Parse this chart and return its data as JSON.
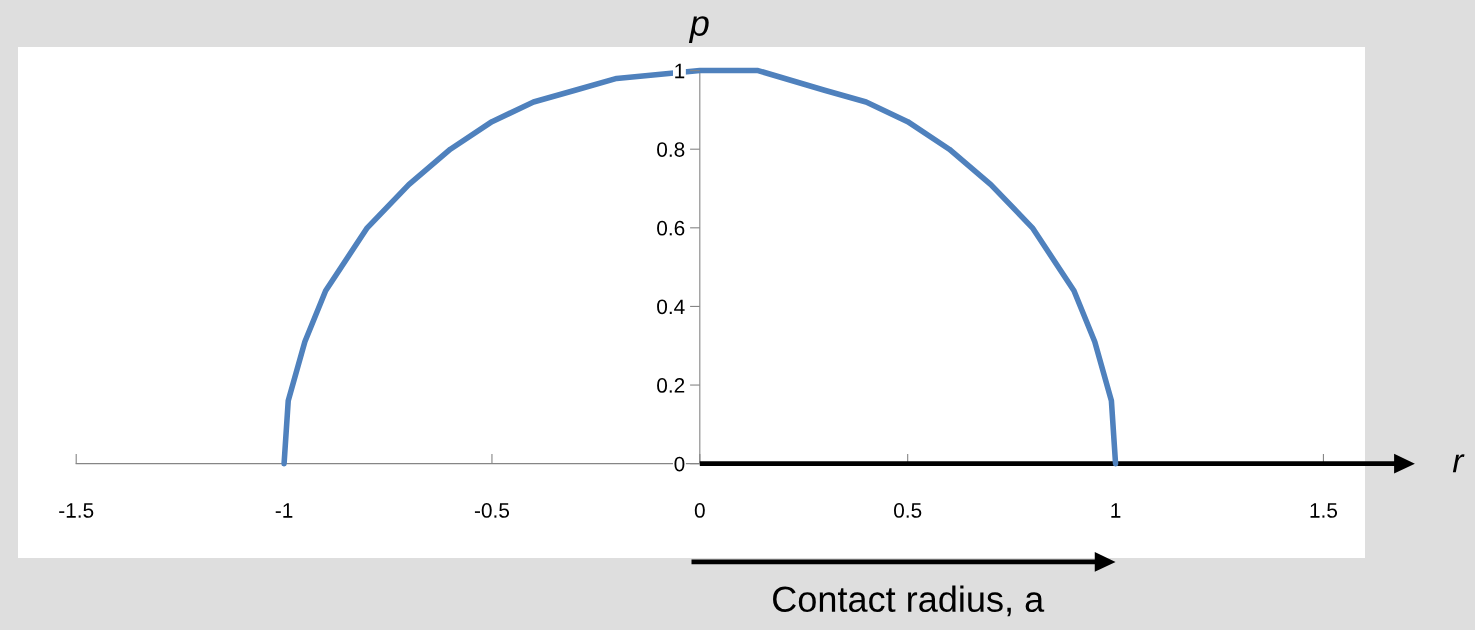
{
  "chart_data": {
    "type": "line",
    "xlabel": "r",
    "ylabel": "p",
    "x": [
      -1,
      -0.99,
      -0.95,
      -0.9,
      -0.8,
      -0.7,
      -0.6,
      -0.5,
      -0.4,
      -0.3,
      -0.2,
      -0.1,
      0,
      0.14,
      0.3,
      0.4,
      0.5,
      0.6,
      0.7,
      0.8,
      0.9,
      0.95,
      0.99,
      1
    ],
    "series": [
      {
        "color": "#4f81bd",
        "values": [
          0,
          0.16,
          0.31,
          0.44,
          0.6,
          0.71,
          0.8,
          0.87,
          0.92,
          0.95,
          0.98,
          0.99,
          1,
          1,
          0.95,
          0.92,
          0.87,
          0.8,
          0.71,
          0.6,
          0.44,
          0.31,
          0.16,
          0
        ]
      }
    ],
    "xlim": [
      -1.64,
      1.6
    ],
    "ylim": [
      -0.24,
      1.06
    ],
    "xticks": [
      -1.5,
      -1,
      -0.5,
      0,
      0.5,
      1,
      1.5
    ],
    "yticks": [
      0,
      0.2,
      0.4,
      0.6,
      0.8,
      1
    ],
    "annotations": [
      "Contact radius, a"
    ],
    "grid": false,
    "legend": false,
    "marker": "none",
    "line_style": "solid"
  }
}
